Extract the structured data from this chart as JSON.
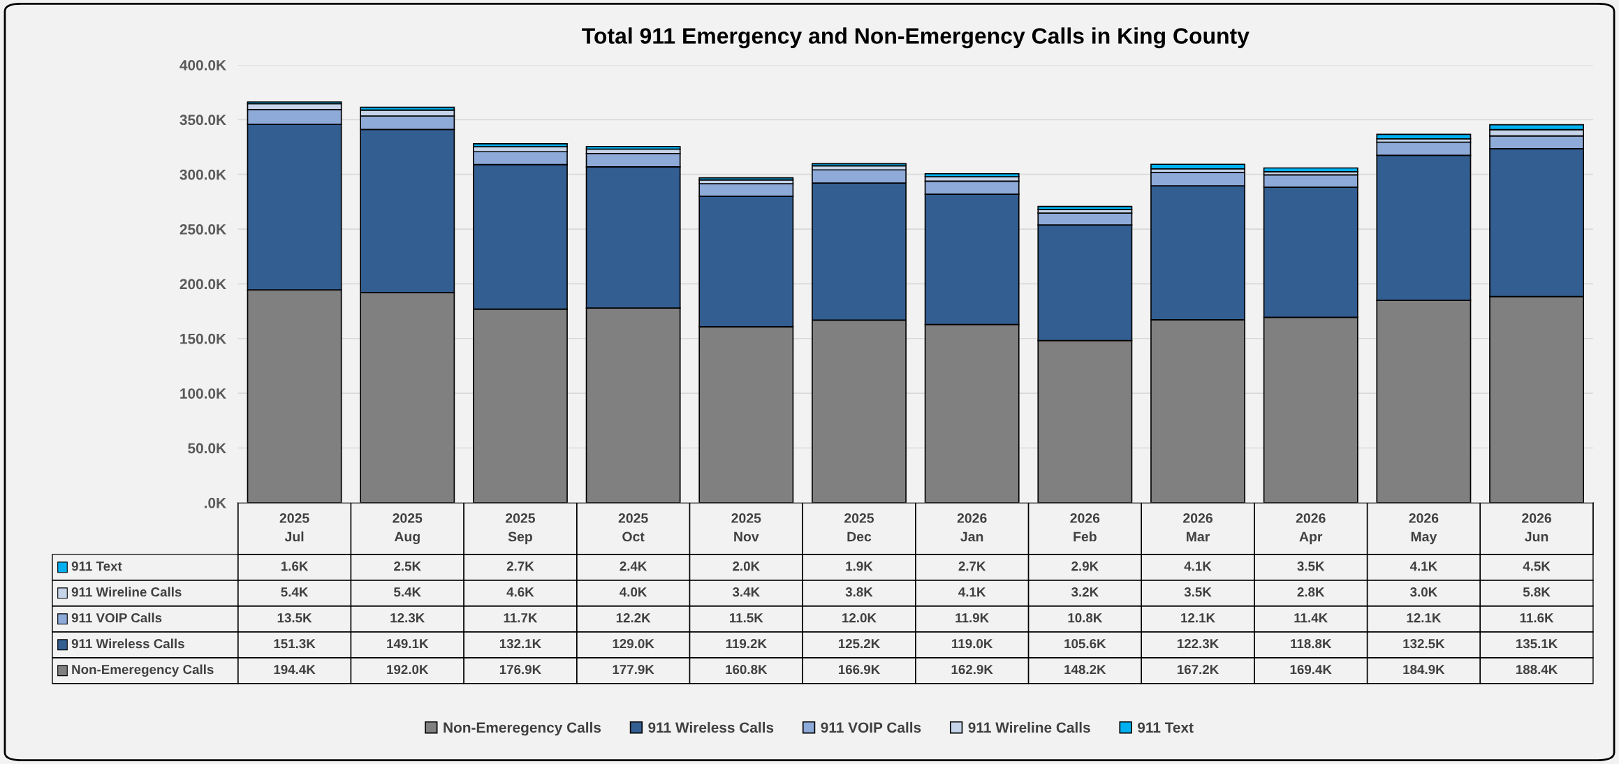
{
  "chart_data": {
    "type": "bar",
    "title": "Total 911 Emergency and Non-Emergency Calls in King County",
    "categories": [
      "2025\nJul",
      "2025\nAug",
      "2025\nSep",
      "2025\nOct",
      "2025\nNov",
      "2025\nDec",
      "2026\nJan",
      "2026\nFeb",
      "2026\nMar",
      "2026\nApr",
      "2026\nMay",
      "2026\nJun"
    ],
    "stacked": true,
    "series": [
      {
        "name": "Non-Emeregency Calls",
        "color": "#808080",
        "values": [
          194.4,
          192.0,
          176.9,
          177.9,
          160.8,
          166.9,
          162.9,
          148.2,
          167.2,
          169.4,
          184.9,
          188.4
        ],
        "value_labels": [
          "194.4K",
          "192.0K",
          "176.9K",
          "177.9K",
          "160.8K",
          "166.9K",
          "162.9K",
          "148.2K",
          "167.2K",
          "169.4K",
          "184.9K",
          "188.4K"
        ]
      },
      {
        "name": "911 Wireless Calls",
        "color": "#335e91",
        "values": [
          151.3,
          149.1,
          132.1,
          129.0,
          119.2,
          125.2,
          119.0,
          105.6,
          122.3,
          118.8,
          132.5,
          135.1
        ],
        "value_labels": [
          "151.3K",
          "149.1K",
          "132.1K",
          "129.0K",
          "119.2K",
          "125.2K",
          "119.0K",
          "105.6K",
          "122.3K",
          "118.8K",
          "132.5K",
          "135.1K"
        ]
      },
      {
        "name": "911 VOIP Calls",
        "color": "#8eaad8",
        "values": [
          13.5,
          12.3,
          11.7,
          12.2,
          11.5,
          12.0,
          11.9,
          10.8,
          12.1,
          11.4,
          12.1,
          11.6
        ],
        "value_labels": [
          "13.5K",
          "12.3K",
          "11.7K",
          "12.2K",
          "11.5K",
          "12.0K",
          "11.9K",
          "10.8K",
          "12.1K",
          "11.4K",
          "12.1K",
          "11.6K"
        ]
      },
      {
        "name": "911 Wireline Calls",
        "color": "#c6d4ea",
        "values": [
          5.4,
          5.4,
          4.6,
          4.0,
          3.4,
          3.8,
          4.1,
          3.2,
          3.5,
          2.8,
          3.0,
          5.8
        ],
        "value_labels": [
          "5.4K",
          "5.4K",
          "4.6K",
          "4.0K",
          "3.4K",
          "3.8K",
          "4.1K",
          "3.2K",
          "3.5K",
          "2.8K",
          "3.0K",
          "5.8K"
        ]
      },
      {
        "name": "911 Text",
        "color": "#00b0f0",
        "values": [
          1.6,
          2.5,
          2.7,
          2.4,
          2.0,
          1.9,
          2.7,
          2.9,
          4.1,
          3.5,
          4.1,
          4.5
        ],
        "value_labels": [
          "1.6K",
          "2.5K",
          "2.7K",
          "2.4K",
          "2.0K",
          "1.9K",
          "2.7K",
          "2.9K",
          "4.1K",
          "3.5K",
          "4.1K",
          "4.5K"
        ]
      }
    ],
    "ylim": [
      0,
      400
    ],
    "yticks": [
      {
        "value": 0,
        "label": ".0K"
      },
      {
        "value": 50,
        "label": "50.0K"
      },
      {
        "value": 100,
        "label": "100.0K"
      },
      {
        "value": 150,
        "label": "150.0K"
      },
      {
        "value": 200,
        "label": "200.0K"
      },
      {
        "value": 250,
        "label": "250.0K"
      },
      {
        "value": 300,
        "label": "300.0K"
      },
      {
        "value": 350,
        "label": "350.0K"
      },
      {
        "value": 400,
        "label": "400.0K"
      }
    ],
    "grid": "y",
    "legend": "bottom"
  }
}
